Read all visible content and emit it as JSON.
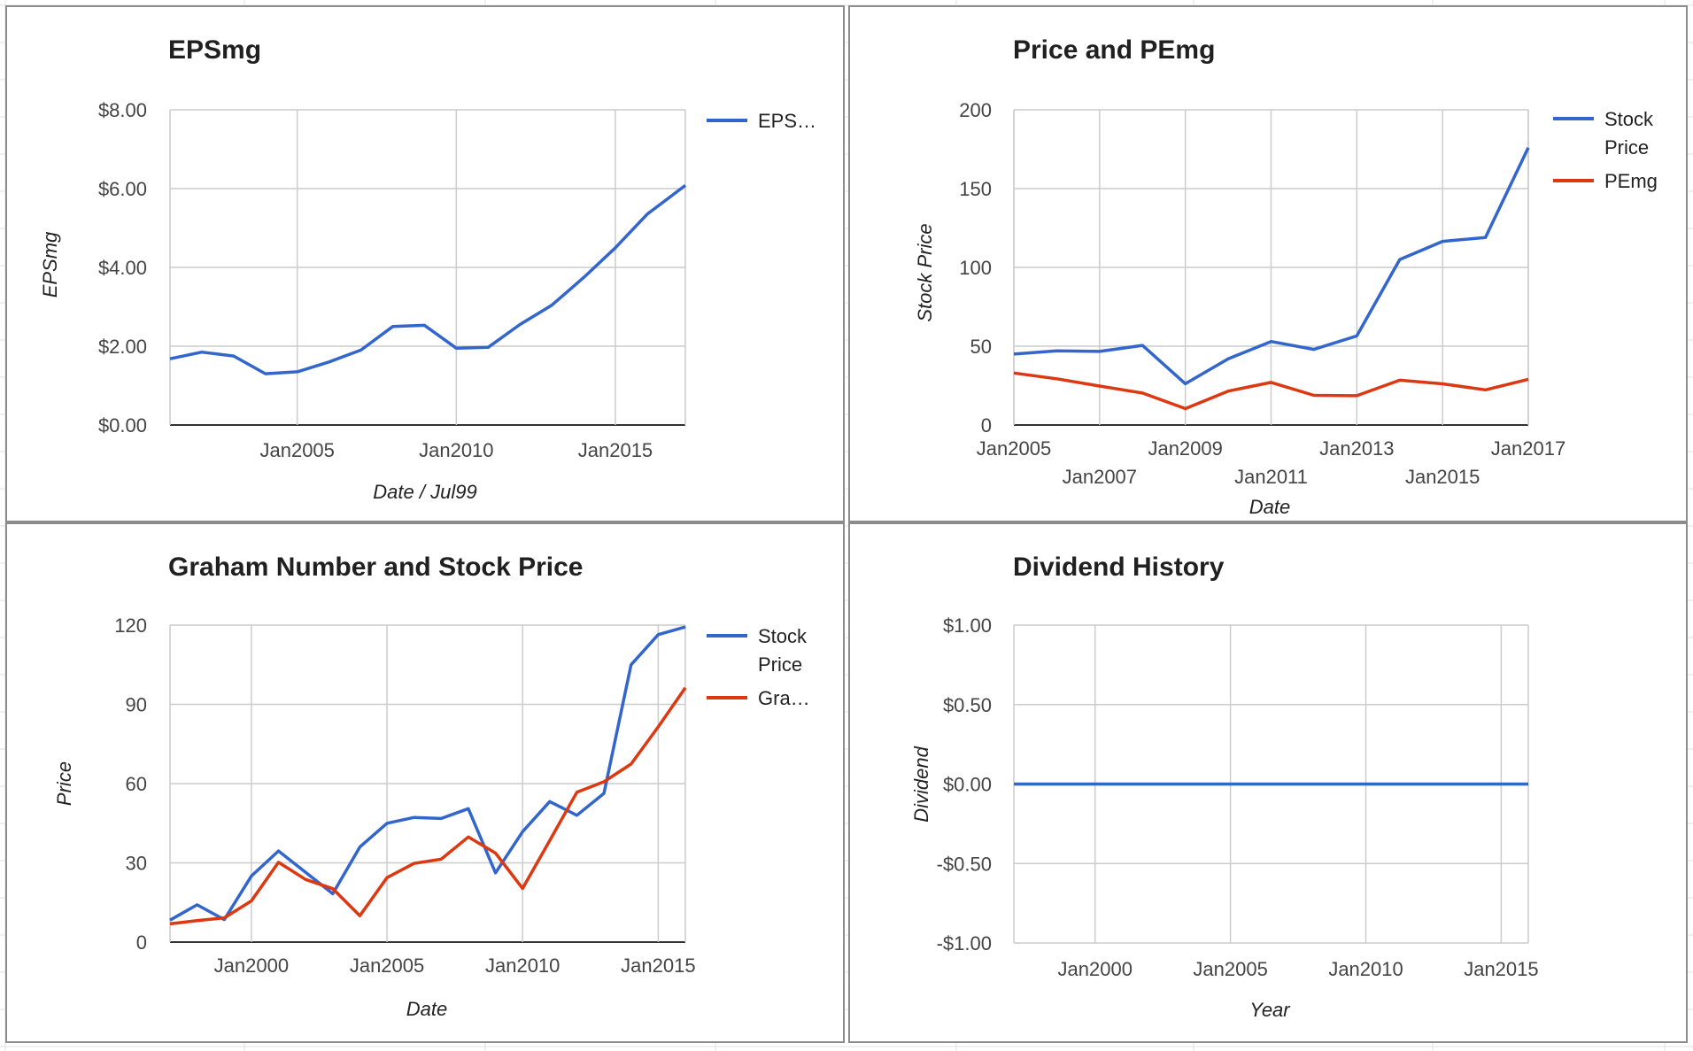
{
  "colors": {
    "blue": "#3366cc",
    "red": "#dc3912",
    "grid": "#cccccc",
    "background": "#ffffff",
    "border": "#8c8c8c"
  },
  "chart_data": [
    {
      "type": "line",
      "title": "EPSmg",
      "xlabel": "Date / Jul99",
      "ylabel": "EPSmg",
      "x_ticks": [
        "Jan2005",
        "Jan2010",
        "Jan2015"
      ],
      "y_ticks": [
        "$0.00",
        "$2.00",
        "$4.00",
        "$6.00",
        "$8.00"
      ],
      "xlim": [
        2001,
        2017.2
      ],
      "ylim": [
        0,
        8
      ],
      "grid": true,
      "legend": "right",
      "series": [
        {
          "name": "EPS…",
          "color": "#3366cc",
          "x": [
            2001,
            2002,
            2003,
            2004,
            2005,
            2006,
            2007,
            2008,
            2009,
            2010,
            2011,
            2012,
            2013,
            2014,
            2015,
            2016,
            2017.2
          ],
          "y": [
            1.68,
            1.85,
            1.75,
            1.3,
            1.35,
            1.6,
            1.9,
            2.5,
            2.53,
            1.95,
            1.97,
            2.55,
            3.04,
            3.74,
            4.5,
            5.35,
            6.08
          ]
        }
      ]
    },
    {
      "type": "line",
      "title": "Price and PEmg",
      "xlabel": "Date",
      "ylabel": "Stock Price",
      "x_ticks": [
        "Jan2005",
        "Jan2007",
        "Jan2009",
        "Jan2011",
        "Jan2013",
        "Jan2015",
        "Jan2017"
      ],
      "y_ticks": [
        "0",
        "50",
        "100",
        "150",
        "200"
      ],
      "xlim": [
        2005,
        2017
      ],
      "ylim": [
        0,
        200
      ],
      "grid": true,
      "legend": "right",
      "series": [
        {
          "name": "Stock Price",
          "color": "#3366cc",
          "x": [
            2005,
            2006,
            2007,
            2008,
            2009,
            2010,
            2011,
            2012,
            2013,
            2014,
            2015,
            2016,
            2017
          ],
          "y": [
            45,
            47,
            46.7,
            50.5,
            26.2,
            42,
            53,
            48,
            56.5,
            105,
            116.5,
            119,
            176
          ]
        },
        {
          "name": "PEmg",
          "color": "#dc3912",
          "x": [
            2005,
            2006,
            2007,
            2008,
            2009,
            2010,
            2011,
            2012,
            2013,
            2014,
            2015,
            2016,
            2017
          ],
          "y": [
            33,
            29.3,
            24.7,
            20.3,
            10.4,
            21.5,
            27,
            18.8,
            18.6,
            28.4,
            26.1,
            22.3,
            29
          ]
        }
      ]
    },
    {
      "type": "line",
      "title": "Graham Number and Stock Price",
      "xlabel": "Date",
      "ylabel": "Price",
      "x_ticks": [
        "Jan2000",
        "Jan2005",
        "Jan2010",
        "Jan2015"
      ],
      "y_ticks": [
        "0",
        "30",
        "60",
        "90",
        "120"
      ],
      "xlim": [
        1997,
        2016
      ],
      "ylim": [
        0,
        120
      ],
      "grid": true,
      "legend": "right",
      "series": [
        {
          "name": "Stock Price",
          "color": "#3366cc",
          "x": [
            1997,
            1998,
            1999,
            2000,
            2001,
            2002,
            2003,
            2004,
            2005,
            2006,
            2007,
            2008,
            2009,
            2010,
            2011,
            2012,
            2013,
            2014,
            2015,
            2016
          ],
          "y": [
            8.3,
            14.1,
            8.5,
            25,
            34.5,
            26.4,
            18.3,
            36,
            45,
            47.2,
            46.8,
            50.5,
            26.2,
            41.8,
            53.2,
            48,
            56.3,
            105,
            116.4,
            119.3
          ]
        },
        {
          "name": "Gra…",
          "color": "#dc3912",
          "x": [
            1997,
            1998,
            1999,
            2000,
            2001,
            2002,
            2003,
            2004,
            2005,
            2006,
            2007,
            2008,
            2009,
            2010,
            2011,
            2012,
            2013,
            2014,
            2015,
            2016
          ],
          "y": [
            6.9,
            8.1,
            9.2,
            15.6,
            30.2,
            23.7,
            20.2,
            10,
            24.4,
            29.8,
            31.4,
            39.8,
            33.7,
            20.3,
            38.4,
            56.7,
            60.7,
            67.4,
            81.5,
            96.3
          ]
        }
      ]
    },
    {
      "type": "line",
      "title": "Dividend History",
      "xlabel": "Year",
      "ylabel": "Dividend",
      "x_ticks": [
        "Jan2000",
        "Jan2005",
        "Jan2010",
        "Jan2015"
      ],
      "y_ticks": [
        "$1.00",
        "$0.50",
        "$0.00",
        "-$0.50",
        "-$1.00"
      ],
      "xlim": [
        1997,
        2016
      ],
      "ylim": [
        -1,
        1
      ],
      "grid": true,
      "legend": "none",
      "series": [
        {
          "color": "#3366cc",
          "x": [
            1997,
            2016
          ],
          "y": [
            0,
            0
          ]
        }
      ]
    }
  ]
}
